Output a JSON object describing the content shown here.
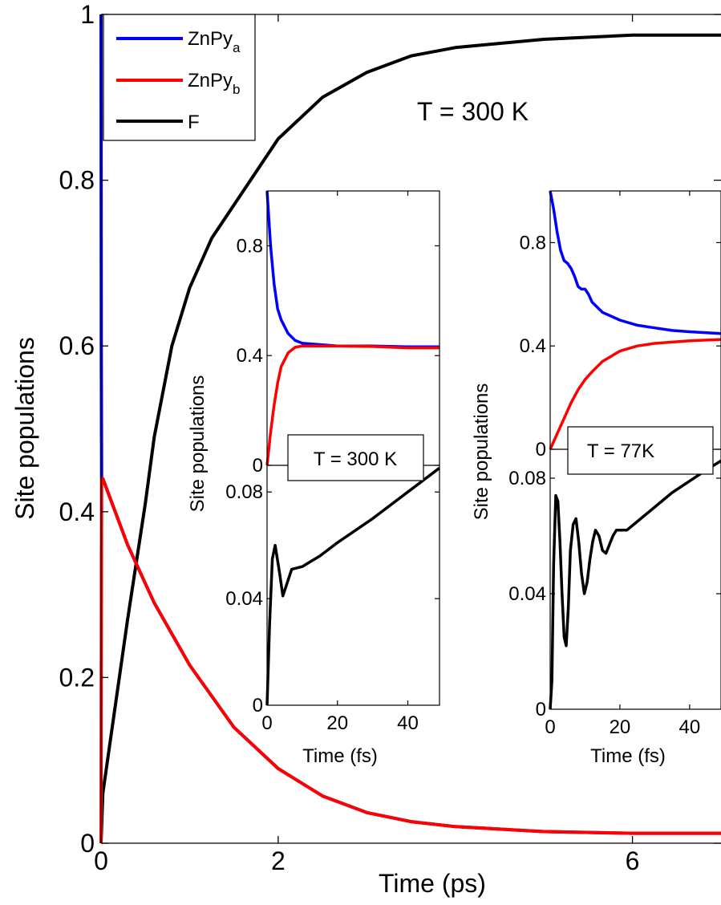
{
  "chart_data": [
    {
      "type": "line",
      "id": "main",
      "xlabel": "Time (ps)",
      "ylabel": "Site populations",
      "xlim": [
        0,
        7
      ],
      "ylim": [
        0,
        1
      ],
      "xticks": [
        0,
        2,
        6
      ],
      "yticks": [
        0,
        0.2,
        0.4,
        0.6,
        0.8,
        1
      ],
      "ytick_labels": [
        "0",
        "0.2",
        "0.4",
        "0.6",
        "0.8",
        "1"
      ],
      "annotation": "T = 300 K",
      "legend_position": "top-left",
      "series": [
        {
          "name": "ZnPy",
          "sub": "a",
          "color": "#0000ff",
          "x": [
            0,
            0.003,
            0.006,
            0.02,
            0.3,
            0.6,
            1,
            1.5,
            2,
            2.5,
            3,
            3.5,
            4,
            5,
            6,
            7
          ],
          "y": [
            1,
            0.6,
            0.44,
            0.44,
            0.36,
            0.29,
            0.215,
            0.14,
            0.09,
            0.057,
            0.037,
            0.026,
            0.02,
            0.014,
            0.012,
            0.012
          ]
        },
        {
          "name": "ZnPy",
          "sub": "b",
          "color": "#ff0000",
          "x": [
            0,
            0.003,
            0.006,
            0.02,
            0.3,
            0.6,
            1,
            1.5,
            2,
            2.5,
            3,
            3.5,
            4,
            5,
            6,
            7
          ],
          "y": [
            0,
            0.2,
            0.44,
            0.44,
            0.36,
            0.29,
            0.215,
            0.14,
            0.09,
            0.057,
            0.037,
            0.026,
            0.02,
            0.014,
            0.012,
            0.012
          ]
        },
        {
          "name": "F",
          "sub": "",
          "color": "#000000",
          "x": [
            0,
            0.02,
            0.1,
            0.3,
            0.5,
            0.6,
            0.8,
            1,
            1.25,
            1.5,
            1.75,
            2,
            2.5,
            3,
            3.5,
            4,
            5,
            6,
            7
          ],
          "y": [
            0,
            0.06,
            0.12,
            0.27,
            0.41,
            0.49,
            0.6,
            0.67,
            0.73,
            0.77,
            0.81,
            0.85,
            0.9,
            0.93,
            0.95,
            0.96,
            0.97,
            0.975,
            0.975
          ]
        }
      ]
    },
    {
      "type": "line",
      "id": "inset-300K",
      "xlabel": "Time (fs)",
      "ylabel": "Site populations",
      "xlim": [
        0,
        49
      ],
      "annotation": "T = 300 K",
      "top_panel": {
        "ylim": [
          0,
          1
        ],
        "yticks": [
          0,
          0.4,
          0.8
        ],
        "ytick_labels": [
          "0",
          "0.4",
          "0.8"
        ],
        "series": [
          {
            "color": "#0000ff",
            "x": [
              0,
              1,
              2,
              3,
              4,
              6,
              8,
              10,
              15,
              20,
              30,
              40,
              49
            ],
            "y": [
              1,
              0.8,
              0.66,
              0.57,
              0.53,
              0.48,
              0.455,
              0.445,
              0.44,
              0.435,
              0.435,
              0.432,
              0.432
            ]
          },
          {
            "color": "#ff0000",
            "x": [
              0,
              1,
              2,
              3,
              4,
              6,
              8,
              10,
              15,
              20,
              30,
              40,
              49
            ],
            "y": [
              0,
              0.12,
              0.22,
              0.3,
              0.36,
              0.41,
              0.43,
              0.435,
              0.435,
              0.435,
              0.433,
              0.428,
              0.428
            ]
          }
        ]
      },
      "bottom_panel": {
        "ylim": [
          0,
          0.09
        ],
        "yticks": [
          0,
          0.04,
          0.08
        ],
        "ytick_labels": [
          "0",
          "0.04",
          "0.08"
        ],
        "series": [
          {
            "color": "#000000",
            "x": [
              0,
              0.7,
              1.5,
              2.3,
              3.5,
              4.5,
              5.5,
              7,
              10,
              15,
              20,
              30,
              40,
              49
            ],
            "y": [
              0,
              0.03,
              0.055,
              0.06,
              0.05,
              0.041,
              0.045,
              0.051,
              0.052,
              0.056,
              0.061,
              0.07,
              0.08,
              0.089
            ]
          }
        ]
      },
      "xticks": [
        0,
        20,
        40
      ],
      "xtick_labels": [
        "0",
        "20",
        "40"
      ]
    },
    {
      "type": "line",
      "id": "inset-77K",
      "xlabel": "Time (fs)",
      "ylabel": "Site populations",
      "xlim": [
        0,
        49
      ],
      "annotation": "T = 77K",
      "top_panel": {
        "ylim": [
          0,
          1
        ],
        "yticks": [
          0,
          0.4,
          0.8
        ],
        "ytick_labels": [
          "0",
          "0.4",
          "0.8"
        ],
        "series": [
          {
            "color": "#0000ff",
            "x": [
              0,
              1,
              2,
              3,
              4,
              5,
              6,
              7,
              8,
              9,
              10,
              11,
              12,
              15,
              20,
              25,
              30,
              35,
              40,
              49
            ],
            "y": [
              1,
              0.93,
              0.84,
              0.77,
              0.73,
              0.72,
              0.7,
              0.67,
              0.63,
              0.62,
              0.62,
              0.6,
              0.57,
              0.53,
              0.5,
              0.48,
              0.47,
              0.46,
              0.455,
              0.448
            ]
          },
          {
            "color": "#ff0000",
            "x": [
              0,
              2,
              4,
              6,
              8,
              10,
              12,
              15,
              20,
              25,
              30,
              35,
              40,
              49
            ],
            "y": [
              0,
              0.06,
              0.12,
              0.18,
              0.23,
              0.27,
              0.3,
              0.34,
              0.38,
              0.4,
              0.41,
              0.415,
              0.42,
              0.425
            ]
          }
        ]
      },
      "bottom_panel": {
        "ylim": [
          0,
          0.09
        ],
        "yticks": [
          0,
          0.04,
          0.08
        ],
        "ytick_labels": [
          "0",
          "0.04",
          "0.08"
        ],
        "series": [
          {
            "color": "#000000",
            "x": [
              0,
              0.5,
              1,
              1.6,
              2.2,
              2.8,
              3.4,
              4,
              4.6,
              5.2,
              5.8,
              6.6,
              7.4,
              8.2,
              9,
              9.8,
              10.6,
              11.4,
              12.2,
              13,
              14,
              15,
              16,
              17,
              18,
              19,
              20,
              22,
              24,
              26,
              30,
              35,
              40,
              45,
              49
            ],
            "y": [
              0,
              0.01,
              0.05,
              0.074,
              0.072,
              0.058,
              0.04,
              0.025,
              0.022,
              0.035,
              0.055,
              0.064,
              0.066,
              0.058,
              0.047,
              0.04,
              0.044,
              0.052,
              0.058,
              0.062,
              0.06,
              0.055,
              0.054,
              0.057,
              0.06,
              0.062,
              0.062,
              0.062,
              0.064,
              0.066,
              0.07,
              0.075,
              0.079,
              0.083,
              0.086
            ]
          }
        ]
      },
      "xticks": [
        0,
        20,
        40
      ],
      "xtick_labels": [
        "0",
        "20",
        "40"
      ]
    }
  ]
}
